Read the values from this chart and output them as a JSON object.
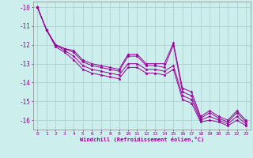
{
  "title": "",
  "xlabel": "Windchill (Refroidissement éolien,°C)",
  "background_color": "#cceeed",
  "grid_color": "#aacccc",
  "line_color": "#990099",
  "tick_color": "#990099",
  "ylim": [
    -16.5,
    -9.7
  ],
  "xlim": [
    -0.5,
    23.5
  ],
  "yticks": [
    -16,
    -15,
    -14,
    -13,
    -12,
    -11,
    -10
  ],
  "xticks": [
    0,
    1,
    2,
    3,
    4,
    5,
    6,
    7,
    8,
    9,
    10,
    11,
    12,
    13,
    14,
    15,
    16,
    17,
    18,
    19,
    20,
    21,
    22,
    23
  ],
  "series": [
    [
      -10.0,
      -11.2,
      -12.0,
      -12.2,
      -12.3,
      -12.8,
      -13.0,
      -13.1,
      -13.2,
      -13.3,
      -12.5,
      -12.5,
      -13.0,
      -13.0,
      -13.0,
      -11.9,
      -14.3,
      -14.5,
      -15.8,
      -15.5,
      -15.8,
      -16.0,
      -15.5,
      -16.0
    ],
    [
      -10.0,
      -11.2,
      -12.0,
      -12.2,
      -12.4,
      -12.9,
      -13.1,
      -13.2,
      -13.3,
      -13.4,
      -12.6,
      -12.6,
      -13.1,
      -13.1,
      -13.2,
      -12.0,
      -14.5,
      -14.7,
      -15.9,
      -15.6,
      -15.9,
      -16.1,
      -15.6,
      -16.1
    ],
    [
      -10.0,
      -11.2,
      -12.0,
      -12.3,
      -12.6,
      -13.1,
      -13.3,
      -13.4,
      -13.5,
      -13.6,
      -13.0,
      -13.0,
      -13.3,
      -13.3,
      -13.4,
      -13.1,
      -14.7,
      -14.9,
      -16.0,
      -15.8,
      -16.0,
      -16.2,
      -15.8,
      -16.2
    ],
    [
      -10.0,
      -11.2,
      -12.1,
      -12.4,
      -12.8,
      -13.3,
      -13.5,
      -13.6,
      -13.7,
      -13.8,
      -13.2,
      -13.2,
      -13.5,
      -13.5,
      -13.6,
      -13.3,
      -14.9,
      -15.1,
      -16.1,
      -16.0,
      -16.1,
      -16.3,
      -16.0,
      -16.3
    ]
  ]
}
